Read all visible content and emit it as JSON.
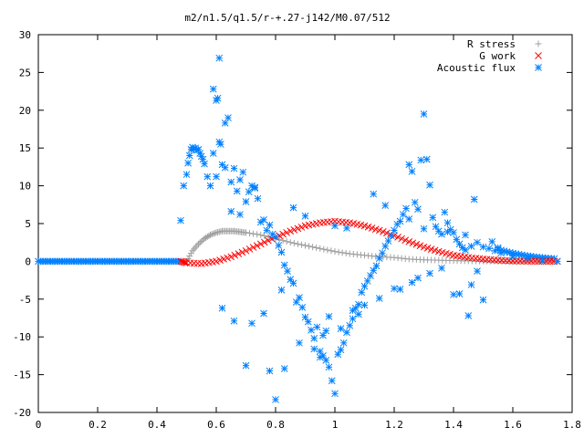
{
  "chart_data": {
    "type": "scatter",
    "title": "m2/n1.5/q1.5/r-+.27-j142/M0.07/512",
    "xlabel": "",
    "ylabel": "",
    "xlim": [
      0,
      1.8
    ],
    "ylim": [
      -20,
      30
    ],
    "x_ticks": [
      "0",
      "0.2",
      "0.4",
      "0.6",
      "0.8",
      "1",
      "1.2",
      "1.4",
      "1.6",
      "1.8"
    ],
    "y_ticks": [
      "-20",
      "-15",
      "-10",
      "-5",
      "0",
      "5",
      "10",
      "15",
      "20",
      "25",
      "30"
    ],
    "grid": false,
    "legend_position": "top-right",
    "series": [
      {
        "name": "R stress",
        "marker": "plus",
        "color": "#a0a0a0",
        "x": [
          0.5,
          0.52,
          0.54,
          0.56,
          0.58,
          0.6,
          0.62,
          0.64,
          0.66,
          0.68,
          0.7,
          0.75,
          0.8,
          0.85,
          0.9,
          0.95,
          1.0,
          1.05,
          1.1,
          1.15,
          1.2,
          1.25,
          1.3,
          1.35,
          1.4,
          1.45,
          1.5,
          1.55,
          1.6,
          1.65,
          1.7,
          1.75
        ],
        "y": [
          0.0,
          1.4,
          2.3,
          3.0,
          3.5,
          3.8,
          4.0,
          4.0,
          4.0,
          3.9,
          3.8,
          3.5,
          3.0,
          2.5,
          2.1,
          1.7,
          1.3,
          1.0,
          0.8,
          0.6,
          0.5,
          0.3,
          0.2,
          0.15,
          0.1,
          0.05,
          0.03,
          0.02,
          0.01,
          0.0,
          0.0,
          0.0
        ]
      },
      {
        "name": "G work",
        "marker": "cross",
        "color": "#ff0000",
        "x": [
          0.48,
          0.5,
          0.55,
          0.6,
          0.65,
          0.7,
          0.75,
          0.8,
          0.85,
          0.9,
          0.95,
          1.0,
          1.05,
          1.1,
          1.15,
          1.2,
          1.25,
          1.3,
          1.35,
          1.4,
          1.45,
          1.5,
          1.55,
          1.6,
          1.65,
          1.7,
          1.75
        ],
        "y": [
          0.0,
          -0.2,
          -0.3,
          0.0,
          0.6,
          1.4,
          2.3,
          3.2,
          4.0,
          4.7,
          5.1,
          5.3,
          5.1,
          4.7,
          4.1,
          3.4,
          2.6,
          1.9,
          1.3,
          0.8,
          0.5,
          0.3,
          0.15,
          0.05,
          0.02,
          0.0,
          0.0
        ]
      },
      {
        "name": "Acoustic flux",
        "marker": "star",
        "color": "#0080ff",
        "x": [
          0.48,
          0.49,
          0.5,
          0.505,
          0.51,
          0.515,
          0.52,
          0.525,
          0.53,
          0.535,
          0.54,
          0.545,
          0.55,
          0.555,
          0.56,
          0.57,
          0.58,
          0.59,
          0.6,
          0.605,
          0.61,
          0.615,
          0.62,
          0.63,
          0.64,
          0.65,
          0.66,
          0.67,
          0.68,
          0.69,
          0.7,
          0.71,
          0.72,
          0.73,
          0.74,
          0.75,
          0.76,
          0.77,
          0.78,
          0.79,
          0.8,
          0.81,
          0.82,
          0.83,
          0.84,
          0.85,
          0.86,
          0.87,
          0.88,
          0.89,
          0.9,
          0.91,
          0.92,
          0.93,
          0.94,
          0.95,
          0.96,
          0.97,
          0.98,
          0.99,
          1.0,
          1.01,
          1.02,
          1.03,
          1.04,
          1.05,
          1.06,
          1.07,
          1.08,
          1.09,
          1.1,
          1.11,
          1.12,
          1.13,
          1.14,
          1.15,
          1.16,
          1.17,
          1.18,
          1.19,
          1.2,
          1.21,
          1.22,
          1.23,
          1.24,
          1.25,
          1.26,
          1.27,
          1.28,
          1.29,
          1.3,
          1.31,
          1.32,
          1.33,
          1.34,
          1.35,
          1.36,
          1.37,
          1.38,
          1.39,
          1.4,
          1.41,
          1.42,
          1.43,
          1.44,
          1.45,
          1.46,
          1.47,
          1.48,
          1.5,
          1.52,
          1.54,
          1.56,
          1.6,
          1.65,
          1.7,
          1.75,
          0.62,
          0.66,
          0.7,
          0.78,
          0.8,
          0.83,
          0.88,
          0.93,
          0.95,
          0.97,
          0.98,
          1.02,
          1.06,
          1.1,
          1.15,
          1.22,
          1.28,
          1.32,
          1.36,
          1.4,
          1.46,
          1.5,
          0.6,
          0.63,
          0.68,
          0.73,
          0.86,
          0.9,
          1.0,
          1.04,
          1.13,
          1.17,
          1.25,
          1.3,
          1.38,
          1.44,
          0.59,
          0.61,
          0.65,
          0.72,
          0.76,
          0.82,
          0.96,
          1.08,
          1.2,
          1.26,
          1.42,
          1.48,
          1.53,
          1.55
        ],
        "y": [
          5.4,
          10.0,
          11.5,
          13.0,
          14.0,
          14.8,
          15.1,
          14.9,
          15.0,
          14.7,
          14.8,
          14.3,
          13.9,
          13.5,
          12.9,
          11.2,
          10.0,
          14.3,
          21.3,
          21.6,
          26.9,
          15.5,
          12.8,
          18.3,
          19.0,
          10.5,
          12.3,
          9.3,
          6.2,
          11.8,
          7.9,
          9.2,
          10.0,
          9.7,
          8.3,
          5.2,
          5.5,
          4.1,
          4.8,
          3.6,
          3.2,
          2.1,
          1.2,
          -0.5,
          -1.3,
          -2.4,
          -2.9,
          -5.4,
          -4.8,
          -6.1,
          -7.4,
          -8.0,
          -9.1,
          -10.2,
          -8.7,
          -11.9,
          -12.5,
          -13.1,
          -14.0,
          -15.8,
          -17.5,
          -12.3,
          -11.7,
          -10.8,
          -9.4,
          -8.5,
          -7.6,
          -6.2,
          -5.7,
          -4.1,
          -3.3,
          -2.6,
          -1.9,
          -1.2,
          -0.6,
          0.4,
          1.1,
          2.0,
          2.7,
          3.4,
          4.1,
          4.9,
          5.3,
          6.2,
          7.0,
          12.8,
          11.9,
          7.8,
          6.9,
          13.4,
          19.5,
          13.5,
          10.1,
          5.8,
          4.6,
          4.0,
          3.6,
          6.5,
          5.1,
          4.2,
          3.8,
          2.9,
          2.3,
          1.8,
          1.5,
          -7.2,
          2.0,
          8.2,
          2.5,
          1.9,
          1.7,
          1.4,
          1.1,
          0.7,
          0.4,
          0.2,
          0.0,
          -6.2,
          -7.9,
          -13.8,
          -14.5,
          -18.3,
          -14.2,
          -10.8,
          -11.6,
          -12.7,
          -9.2,
          -7.3,
          -8.9,
          -6.5,
          -5.8,
          -4.9,
          -3.7,
          -2.2,
          -1.6,
          -0.9,
          -4.4,
          -3.1,
          -5.1,
          11.2,
          12.4,
          10.8,
          9.8,
          7.1,
          6.0,
          4.7,
          4.4,
          8.9,
          7.4,
          5.6,
          4.3,
          3.9,
          3.5,
          22.8,
          15.8,
          6.6,
          -8.2,
          -6.9,
          -3.8,
          -9.8,
          -7.0,
          -3.6,
          -2.8,
          -4.3,
          -1.3,
          2.6,
          1.8
        ]
      }
    ]
  }
}
